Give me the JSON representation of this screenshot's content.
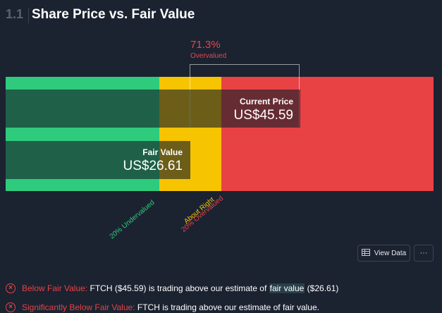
{
  "header": {
    "section_number": "1.1",
    "title": "Share Price vs. Fair Value"
  },
  "valuation": {
    "percent": "71.3%",
    "status": "Overvalued",
    "current_price_label": "Current Price",
    "current_price_value": "US$45.59",
    "fair_value_label": "Fair Value",
    "fair_value_value": "US$26.61",
    "zones": [
      "20% Undervalued",
      "About Right",
      "20% Overvalued"
    ]
  },
  "actions": {
    "view_data_label": "View Data",
    "more_label": "···"
  },
  "checks": [
    {
      "title": "Below Fair Value:",
      "text_before": "FTCH ($45.59) is trading above our estimate of",
      "highlight": "fair value",
      "text_after": "($26.61)"
    },
    {
      "title": "Significantly Below Fair Value:",
      "text": "FTCH is trading above our estimate of fair value."
    }
  ],
  "colors": {
    "background": "#1b2230",
    "undervalued": "#2fcb7c",
    "about_right": "#f6c400",
    "overvalued": "#e84245"
  }
}
